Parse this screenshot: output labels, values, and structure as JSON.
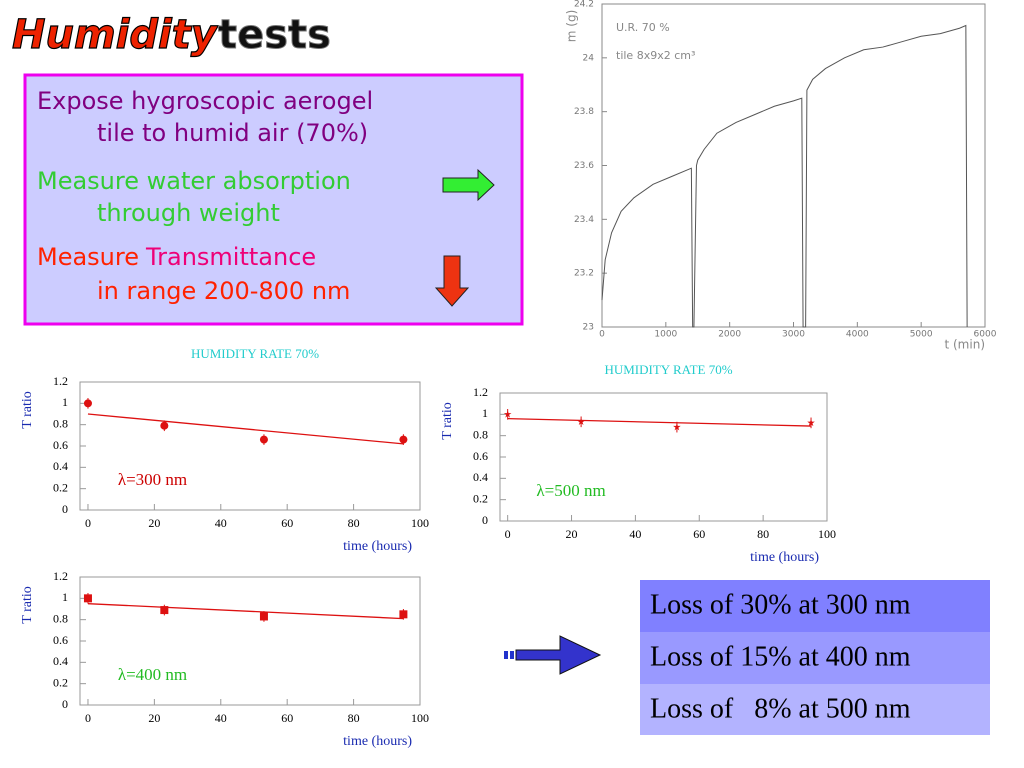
{
  "title": {
    "word1": "Humidity",
    "word2": "tests"
  },
  "box": {
    "items": [
      {
        "line1": [
          "Expose hygroscopic aerogel"
        ],
        "line2": "tile to humid air (70%)"
      },
      {
        "line1": [
          "Measure water absorption"
        ],
        "line2": "through weight"
      },
      {
        "line1": [
          "Measure",
          "Transmittance"
        ],
        "line2": "in range 200-800 nm"
      }
    ]
  },
  "results": [
    "Loss of 30% at 300 nm",
    "Loss of 15% at 400 nm",
    "Loss of   8% at 500 nm"
  ],
  "chart_data": [
    {
      "type": "line",
      "xlabel": "t (min)",
      "ylabel": "m (g)",
      "annotations": [
        "U.R. 70 %",
        "tile 8x9x2 cm³"
      ],
      "color": "#555555",
      "x": [
        0,
        50,
        150,
        300,
        500,
        800,
        1100,
        1400,
        1420,
        1440,
        1480,
        1500,
        1600,
        1800,
        2100,
        2400,
        2700,
        3000,
        3130,
        3150,
        3190,
        3210,
        3300,
        3500,
        3800,
        4100,
        4400,
        4700,
        5000,
        5300,
        5600,
        5700,
        5720
      ],
      "values": [
        23.1,
        23.25,
        23.35,
        23.43,
        23.48,
        23.53,
        23.56,
        23.59,
        23.0,
        23.0,
        23.6,
        23.62,
        23.66,
        23.72,
        23.76,
        23.79,
        23.82,
        23.84,
        23.85,
        23.0,
        23.0,
        23.88,
        23.92,
        23.96,
        24.0,
        24.03,
        24.04,
        24.06,
        24.08,
        24.09,
        24.11,
        24.12,
        23.0
      ],
      "xlim": [
        0,
        6000
      ],
      "xticks": [
        0,
        1000,
        2000,
        3000,
        4000,
        5000,
        6000
      ],
      "ylim": [
        23,
        24.2
      ],
      "yticks": [
        23,
        23.2,
        23.4,
        23.6,
        23.8,
        24,
        24.2
      ]
    },
    {
      "type": "scatter",
      "title": "HUMIDITY RATE 70%",
      "xlabel": "time (hours)",
      "ylabel": "T ratio",
      "annotation": "λ=300 nm",
      "annotation_color": "#cc0000",
      "color": "#dd1111",
      "marker": "circle",
      "x": [
        0,
        23,
        53,
        95
      ],
      "values": [
        1.0,
        0.79,
        0.66,
        0.66
      ],
      "errors": [
        0.05,
        0.05,
        0.05,
        0.05
      ],
      "fit_x": [
        0,
        95
      ],
      "fit_values": [
        0.9,
        0.62
      ],
      "xlim": [
        -2.4,
        100
      ],
      "xticks": [
        0,
        20,
        40,
        60,
        80,
        100
      ],
      "ylim": [
        0,
        1.2
      ],
      "yticks": [
        0,
        0.2,
        0.4,
        0.6,
        0.8,
        1,
        1.2
      ]
    },
    {
      "type": "scatter",
      "title": "HUMIDITY RATE 70%",
      "xlabel": "time (hours)",
      "ylabel": "T ratio",
      "annotation": "λ=500 nm",
      "annotation_color": "#22bb22",
      "color": "#dd1111",
      "marker": "star",
      "x": [
        0,
        23,
        53,
        95
      ],
      "values": [
        1.0,
        0.93,
        0.88,
        0.92
      ],
      "errors": [
        0.05,
        0.05,
        0.05,
        0.05
      ],
      "fit_x": [
        0,
        95
      ],
      "fit_values": [
        0.96,
        0.89
      ],
      "xlim": [
        -2.4,
        100
      ],
      "xticks": [
        0,
        20,
        40,
        60,
        80,
        100
      ],
      "ylim": [
        0,
        1.2
      ],
      "yticks": [
        0,
        0.2,
        0.4,
        0.6,
        0.8,
        1,
        1.2
      ]
    },
    {
      "type": "scatter",
      "xlabel": "time (hours)",
      "ylabel": "T ratio",
      "annotation": "λ=400 nm",
      "annotation_color": "#22bb22",
      "color": "#dd1111",
      "marker": "square",
      "x": [
        0,
        23,
        53,
        95
      ],
      "values": [
        1.0,
        0.89,
        0.83,
        0.85
      ],
      "errors": [
        0.05,
        0.05,
        0.05,
        0.05
      ],
      "fit_x": [
        0,
        95
      ],
      "fit_values": [
        0.95,
        0.81
      ],
      "xlim": [
        -2.4,
        100
      ],
      "xticks": [
        0,
        20,
        40,
        60,
        80,
        100
      ],
      "ylim": [
        0,
        1.2
      ],
      "yticks": [
        0,
        0.2,
        0.4,
        0.6,
        0.8,
        1,
        1.2
      ]
    }
  ]
}
